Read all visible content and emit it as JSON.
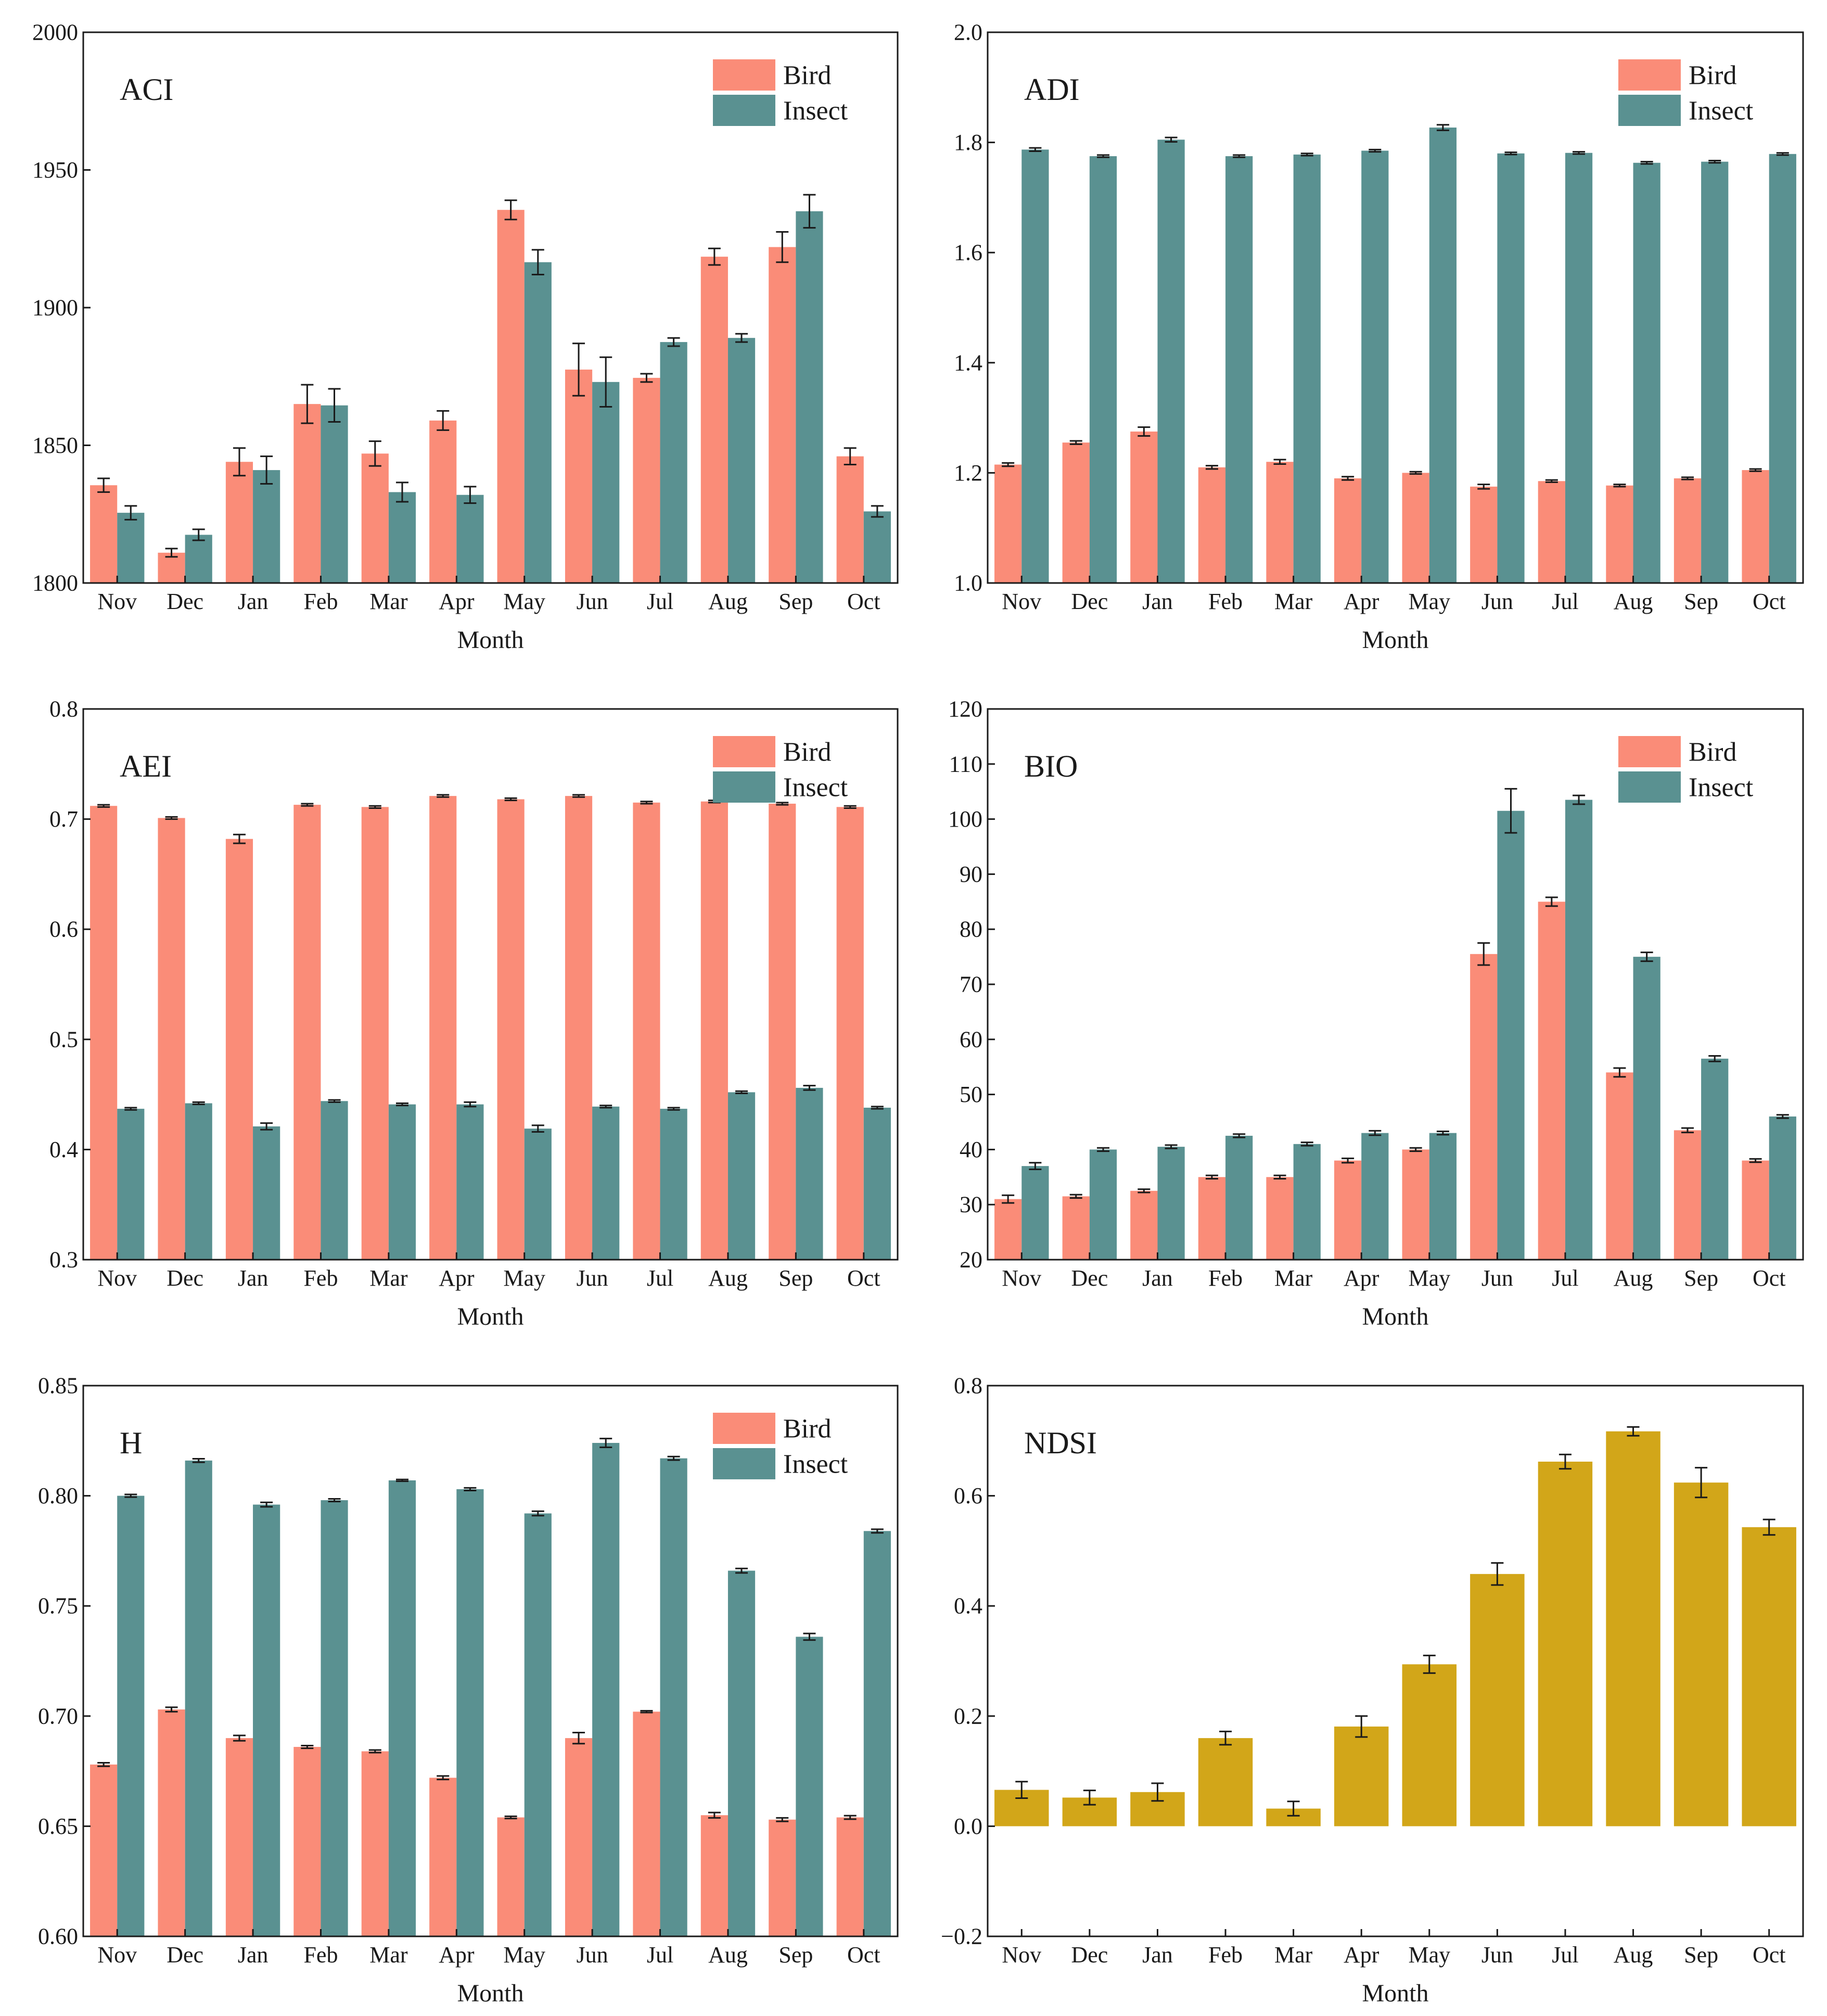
{
  "colors": {
    "bird": "#fa8c78",
    "insect": "#5a9191",
    "ndsi": "#d2a619",
    "axis": "#1a1a1a"
  },
  "chart_data": [
    {
      "title": "ACI",
      "type": "bar",
      "xlabel": "Month",
      "ylabel": "",
      "categories": [
        "Nov",
        "Dec",
        "Jan",
        "Feb",
        "Mar",
        "Apr",
        "May",
        "Jun",
        "Jul",
        "Aug",
        "Sep",
        "Oct"
      ],
      "ylim": [
        1800,
        2000
      ],
      "yticks": [
        1800,
        1850,
        1900,
        1950,
        2000
      ],
      "ytick_labels": [
        "1800",
        "1850",
        "1900",
        "1950",
        "2000"
      ],
      "legend": [
        "Bird",
        "Insect"
      ],
      "legend_position": "top-right",
      "series": [
        {
          "name": "Bird",
          "color": "bird",
          "values": [
            1835.5,
            1811,
            1844,
            1865,
            1847,
            1859,
            1935.5,
            1877.5,
            1874.5,
            1918.5,
            1922,
            1846
          ],
          "errors": [
            2.5,
            1.5,
            5,
            7,
            4.5,
            3.5,
            3.5,
            9.5,
            1.5,
            3,
            5.5,
            3
          ]
        },
        {
          "name": "Insect",
          "color": "insect",
          "values": [
            1825.5,
            1817.5,
            1841,
            1864.5,
            1833,
            1832,
            1916.5,
            1873,
            1887.5,
            1889,
            1935,
            1826
          ],
          "errors": [
            2.5,
            2,
            5,
            6,
            3.5,
            3,
            4.5,
            9,
            1.5,
            1.5,
            6,
            2
          ]
        }
      ]
    },
    {
      "title": "ADI",
      "type": "bar",
      "xlabel": "Month",
      "ylabel": "",
      "categories": [
        "Nov",
        "Dec",
        "Jan",
        "Feb",
        "Mar",
        "Apr",
        "May",
        "Jun",
        "Jul",
        "Aug",
        "Sep",
        "Oct"
      ],
      "ylim": [
        1.0,
        2.0
      ],
      "yticks": [
        1.0,
        1.2,
        1.4,
        1.6,
        1.8,
        2.0
      ],
      "ytick_labels": [
        "1.0",
        "1.2",
        "1.4",
        "1.6",
        "1.8",
        "2.0"
      ],
      "legend": [
        "Bird",
        "Insect"
      ],
      "legend_position": "top-right",
      "series": [
        {
          "name": "Bird",
          "color": "bird",
          "values": [
            1.215,
            1.255,
            1.275,
            1.21,
            1.22,
            1.19,
            1.2,
            1.175,
            1.185,
            1.177,
            1.19,
            1.205
          ],
          "errors": [
            0.003,
            0.003,
            0.008,
            0.003,
            0.004,
            0.003,
            0.002,
            0.004,
            0.002,
            0.002,
            0.002,
            0.002
          ]
        },
        {
          "name": "Insect",
          "color": "insect",
          "values": [
            1.787,
            1.775,
            1.805,
            1.775,
            1.778,
            1.785,
            1.827,
            1.78,
            1.781,
            1.763,
            1.765,
            1.779
          ],
          "errors": [
            0.003,
            0.002,
            0.004,
            0.002,
            0.002,
            0.002,
            0.005,
            0.002,
            0.002,
            0.002,
            0.002,
            0.002
          ]
        }
      ]
    },
    {
      "title": "AEI",
      "type": "bar",
      "xlabel": "Month",
      "ylabel": "",
      "categories": [
        "Nov",
        "Dec",
        "Jan",
        "Feb",
        "Mar",
        "Apr",
        "May",
        "Jun",
        "Jul",
        "Aug",
        "Sep",
        "Oct"
      ],
      "ylim": [
        0.3,
        0.8
      ],
      "yticks": [
        0.3,
        0.4,
        0.5,
        0.6,
        0.7,
        0.8
      ],
      "ytick_labels": [
        "0.3",
        "0.4",
        "0.5",
        "0.6",
        "0.7",
        "0.8"
      ],
      "legend": [
        "Bird",
        "Insect"
      ],
      "legend_position": "top-right",
      "series": [
        {
          "name": "Bird",
          "color": "bird",
          "values": [
            0.712,
            0.701,
            0.682,
            0.713,
            0.711,
            0.721,
            0.718,
            0.721,
            0.715,
            0.716,
            0.714,
            0.711
          ],
          "errors": [
            0.001,
            0.001,
            0.004,
            0.001,
            0.001,
            0.001,
            0.001,
            0.001,
            0.001,
            0.001,
            0.001,
            0.001
          ]
        },
        {
          "name": "Insect",
          "color": "insect",
          "values": [
            0.437,
            0.442,
            0.421,
            0.444,
            0.441,
            0.441,
            0.419,
            0.439,
            0.437,
            0.452,
            0.456,
            0.438
          ],
          "errors": [
            0.001,
            0.001,
            0.003,
            0.001,
            0.001,
            0.002,
            0.003,
            0.001,
            0.001,
            0.001,
            0.002,
            0.001
          ]
        }
      ]
    },
    {
      "title": "BIO",
      "type": "bar",
      "xlabel": "Month",
      "ylabel": "",
      "categories": [
        "Nov",
        "Dec",
        "Jan",
        "Feb",
        "Mar",
        "Apr",
        "May",
        "Jun",
        "Jul",
        "Aug",
        "Sep",
        "Oct"
      ],
      "ylim": [
        20,
        120
      ],
      "yticks": [
        20,
        30,
        40,
        50,
        60,
        70,
        80,
        90,
        100,
        110,
        120
      ],
      "ytick_labels": [
        "20",
        "30",
        "40",
        "50",
        "60",
        "70",
        "80",
        "90",
        "100",
        "110",
        "120"
      ],
      "legend": [
        "Bird",
        "Insect"
      ],
      "legend_position": "top-right",
      "series": [
        {
          "name": "Bird",
          "color": "bird",
          "values": [
            31,
            31.5,
            32.5,
            35,
            35,
            38,
            40,
            75.5,
            85,
            54,
            43.5,
            38
          ],
          "errors": [
            0.7,
            0.3,
            0.3,
            0.3,
            0.3,
            0.4,
            0.3,
            2,
            0.8,
            0.8,
            0.4,
            0.3
          ]
        },
        {
          "name": "Insect",
          "color": "insect",
          "values": [
            37,
            40,
            40.5,
            42.5,
            41,
            43,
            43,
            101.5,
            103.5,
            75,
            56.5,
            46
          ],
          "errors": [
            0.6,
            0.3,
            0.3,
            0.3,
            0.3,
            0.4,
            0.3,
            4,
            0.8,
            0.8,
            0.5,
            0.3
          ]
        }
      ]
    },
    {
      "title": "H",
      "type": "bar",
      "xlabel": "Month",
      "ylabel": "",
      "categories": [
        "Nov",
        "Dec",
        "Jan",
        "Feb",
        "Mar",
        "Apr",
        "May",
        "Jun",
        "Jul",
        "Aug",
        "Sep",
        "Oct"
      ],
      "ylim": [
        0.6,
        0.85
      ],
      "yticks": [
        0.6,
        0.65,
        0.7,
        0.75,
        0.8,
        0.85
      ],
      "ytick_labels": [
        "0.60",
        "0.65",
        "0.70",
        "0.75",
        "0.80",
        "0.85"
      ],
      "legend": [
        "Bird",
        "Insect"
      ],
      "legend_position": "top-right",
      "series": [
        {
          "name": "Bird",
          "color": "bird",
          "values": [
            0.678,
            0.703,
            0.69,
            0.686,
            0.684,
            0.672,
            0.654,
            0.69,
            0.702,
            0.655,
            0.653,
            0.654
          ],
          "errors": [
            0.0008,
            0.001,
            0.0012,
            0.0006,
            0.0006,
            0.0008,
            0.0005,
            0.0025,
            0.0004,
            0.0012,
            0.0008,
            0.0008
          ]
        },
        {
          "name": "Insect",
          "color": "insect",
          "values": [
            0.8,
            0.816,
            0.796,
            0.798,
            0.807,
            0.803,
            0.792,
            0.824,
            0.817,
            0.766,
            0.736,
            0.784
          ],
          "errors": [
            0.0006,
            0.0008,
            0.001,
            0.0006,
            0.0004,
            0.0006,
            0.001,
            0.002,
            0.0008,
            0.001,
            0.0015,
            0.0008
          ]
        }
      ]
    },
    {
      "title": "NDSI",
      "type": "bar",
      "xlabel": "Month",
      "ylabel": "",
      "categories": [
        "Nov",
        "Dec",
        "Jan",
        "Feb",
        "Mar",
        "Apr",
        "May",
        "Jun",
        "Jul",
        "Aug",
        "Sep",
        "Oct"
      ],
      "ylim": [
        -0.2,
        0.8
      ],
      "yticks": [
        -0.2,
        0.0,
        0.2,
        0.4,
        0.6,
        0.8
      ],
      "ytick_labels": [
        "−0.2",
        "0.0",
        "0.2",
        "0.4",
        "0.6",
        "0.8"
      ],
      "legend": [],
      "legend_position": "none",
      "series": [
        {
          "name": "NDSI",
          "color": "ndsi",
          "values": [
            0.066,
            0.052,
            0.062,
            0.16,
            0.032,
            0.181,
            0.294,
            0.458,
            0.662,
            0.717,
            0.624,
            0.543
          ],
          "errors": [
            0.015,
            0.013,
            0.016,
            0.012,
            0.013,
            0.019,
            0.016,
            0.02,
            0.013,
            0.008,
            0.027,
            0.014
          ]
        }
      ]
    }
  ]
}
